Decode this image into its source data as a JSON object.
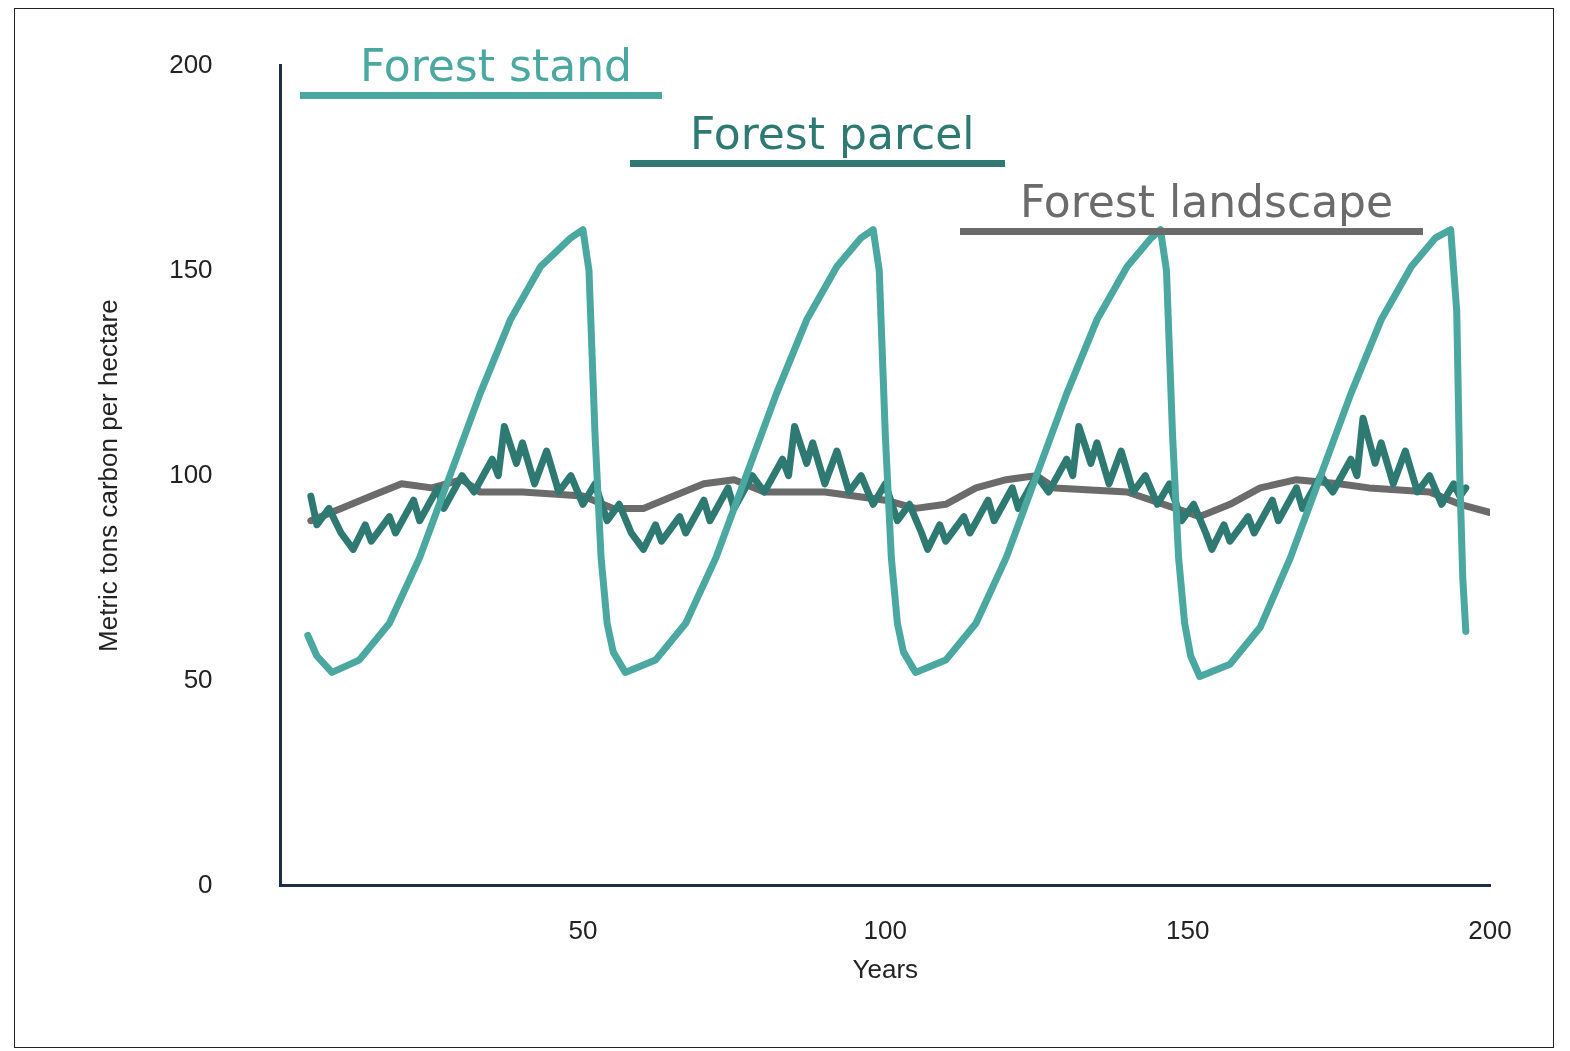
{
  "chart_data": {
    "type": "line",
    "xlabel": "Years",
    "ylabel": "Metric tons carbon per hectare",
    "xlim": [
      0,
      200
    ],
    "xticks": [
      {
        "value": 0,
        "label": null
      },
      50,
      100,
      150,
      200
    ],
    "ylim": [
      0,
      200
    ],
    "yticks": [
      0,
      50,
      100,
      150,
      200
    ],
    "grid": false,
    "legend": "top",
    "marker": "none",
    "line_style": "solid",
    "series": [
      {
        "name": "Forest stand",
        "color": "#4aa8a0",
        "x": [
          4.5,
          6,
          8.5,
          13,
          18,
          23,
          28,
          33,
          38,
          43,
          48,
          50,
          51,
          52,
          53,
          54,
          55,
          57,
          62,
          67,
          72,
          77,
          82,
          87,
          92,
          96,
          98,
          99,
          100,
          101,
          102,
          103,
          105,
          110,
          115,
          120,
          125,
          130,
          135,
          140,
          144,
          145.5,
          146.5,
          147.5,
          148.5,
          149.5,
          150.5,
          152,
          157,
          162,
          167,
          172,
          177,
          182,
          187,
          191,
          193.5,
          194.5,
          195,
          195.5,
          196
        ],
        "values": [
          61,
          56,
          52,
          55,
          64,
          80,
          100,
          120,
          138,
          151,
          158,
          160,
          150,
          110,
          80,
          64,
          57,
          52,
          55,
          64,
          80,
          100,
          120,
          138,
          151,
          158,
          160,
          150,
          110,
          80,
          64,
          57,
          52,
          55,
          64,
          80,
          100,
          120,
          138,
          151,
          158,
          160,
          150,
          110,
          80,
          64,
          56,
          51,
          54,
          63,
          80,
          100,
          120,
          138,
          151,
          158,
          160,
          140,
          100,
          75,
          62
        ]
      },
      {
        "name": "Forest parcel",
        "color": "#2e7a72",
        "x": [
          5,
          6,
          8,
          10,
          12,
          14,
          15,
          18,
          19,
          22,
          23,
          26,
          27,
          30,
          32,
          35,
          36,
          37,
          39,
          40,
          42,
          44,
          46,
          48,
          50,
          52,
          54,
          56,
          58,
          60,
          62,
          63,
          66,
          67,
          70,
          71,
          74,
          75,
          78,
          80,
          83,
          84,
          85,
          87,
          88,
          90,
          92,
          94,
          96,
          98,
          100,
          102,
          104,
          106,
          107,
          109,
          110,
          113,
          114,
          117,
          118,
          121,
          122,
          125,
          127,
          130,
          131,
          132,
          134,
          135,
          137,
          139,
          141,
          143,
          145,
          147,
          149,
          151,
          153,
          154,
          156,
          157,
          160,
          161,
          164,
          165,
          168,
          169,
          172,
          174,
          177,
          178,
          179,
          181,
          182,
          184,
          186,
          188,
          190,
          192,
          194,
          195,
          196
        ],
        "values": [
          95,
          88,
          92,
          86,
          82,
          88,
          84,
          90,
          86,
          94,
          89,
          97,
          92,
          100,
          96,
          104,
          100,
          112,
          103,
          108,
          98,
          106,
          96,
          100,
          93,
          98,
          89,
          93,
          86,
          82,
          88,
          84,
          90,
          86,
          94,
          89,
          97,
          92,
          100,
          96,
          104,
          100,
          112,
          103,
          108,
          98,
          106,
          96,
          100,
          93,
          98,
          89,
          93,
          86,
          82,
          88,
          84,
          90,
          86,
          94,
          89,
          97,
          92,
          100,
          96,
          104,
          100,
          112,
          103,
          108,
          98,
          106,
          96,
          100,
          93,
          98,
          89,
          93,
          86,
          82,
          88,
          84,
          90,
          86,
          94,
          89,
          97,
          92,
          100,
          96,
          104,
          100,
          114,
          103,
          108,
          98,
          106,
          96,
          100,
          93,
          98,
          95,
          97
        ]
      },
      {
        "name": "Forest landscape",
        "color": "#6b6b6b",
        "x": [
          5,
          10,
          15,
          20,
          25,
          30,
          33,
          40,
          50,
          55,
          60,
          65,
          70,
          75,
          80,
          90,
          100,
          105,
          110,
          115,
          120,
          125,
          128,
          140,
          148,
          152,
          157,
          162,
          168,
          175,
          180,
          190,
          195,
          200
        ],
        "values": [
          89,
          92,
          95,
          98,
          97,
          99,
          96,
          96,
          95,
          92,
          92,
          95,
          98,
          99,
          96,
          96,
          94,
          92,
          93,
          97,
          99,
          100,
          97,
          96,
          92,
          90,
          93,
          97,
          99,
          98,
          97,
          96,
          93,
          91
        ]
      }
    ]
  }
}
